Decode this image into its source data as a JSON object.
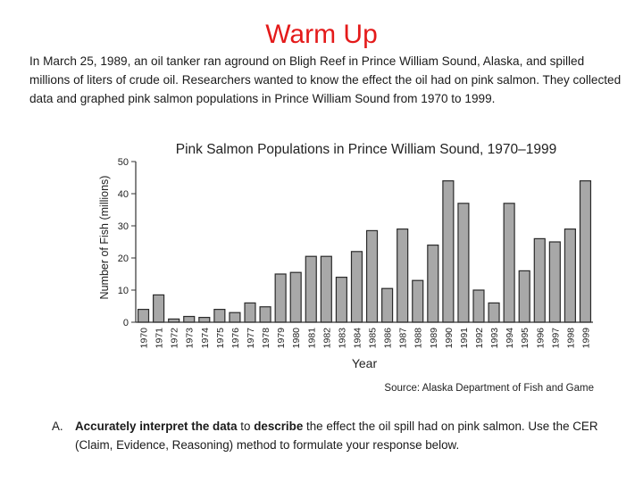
{
  "page": {
    "title": "Warm Up",
    "intro": "In March 25, 1989, an oil tanker ran aground on Bligh Reef in Prince William Sound, Alaska, and spilled millions of liters of crude oil. Researchers wanted to know the effect the oil had on pink salmon. They collected data and graphed pink salmon populations in Prince William Sound from 1970 to 1999.",
    "question": {
      "letter": "A.",
      "bold_1": "Accurately interpret the data",
      "text_1": " to ",
      "bold_2": "describe",
      "text_2": " the effect the oil spill had on pink salmon. Use the CER (Claim, Evidence, Reasoning) method to formulate your response below."
    }
  },
  "colors": {
    "title": "#e41a1a",
    "bar_fill": "#a8a8a8",
    "bar_stroke": "#2b2b2b",
    "axis": "#333333"
  },
  "chart_data": {
    "type": "bar",
    "title": "Pink Salmon Populations in Prince William Sound, 1970–1999",
    "xlabel": "Year",
    "ylabel": "Number of Fish (millions)",
    "source": "Source: Alaska Department of Fish and Game",
    "ylim": [
      0,
      50
    ],
    "yticks": [
      0,
      10,
      20,
      30,
      40,
      50
    ],
    "categories": [
      "1970",
      "1971",
      "1972",
      "1973",
      "1974",
      "1975",
      "1976",
      "1977",
      "1978",
      "1979",
      "1980",
      "1981",
      "1982",
      "1983",
      "1984",
      "1985",
      "1986",
      "1987",
      "1988",
      "1989",
      "1990",
      "1991",
      "1992",
      "1993",
      "1994",
      "1995",
      "1996",
      "1997",
      "1998",
      "1999"
    ],
    "values": [
      4,
      8.5,
      1,
      1.8,
      1.5,
      4,
      3,
      6,
      4.8,
      15,
      15.5,
      20.5,
      20.5,
      14,
      22,
      28.5,
      10.5,
      29,
      13,
      24,
      44,
      37,
      10,
      6,
      37,
      16,
      26,
      25,
      29,
      44
    ]
  }
}
